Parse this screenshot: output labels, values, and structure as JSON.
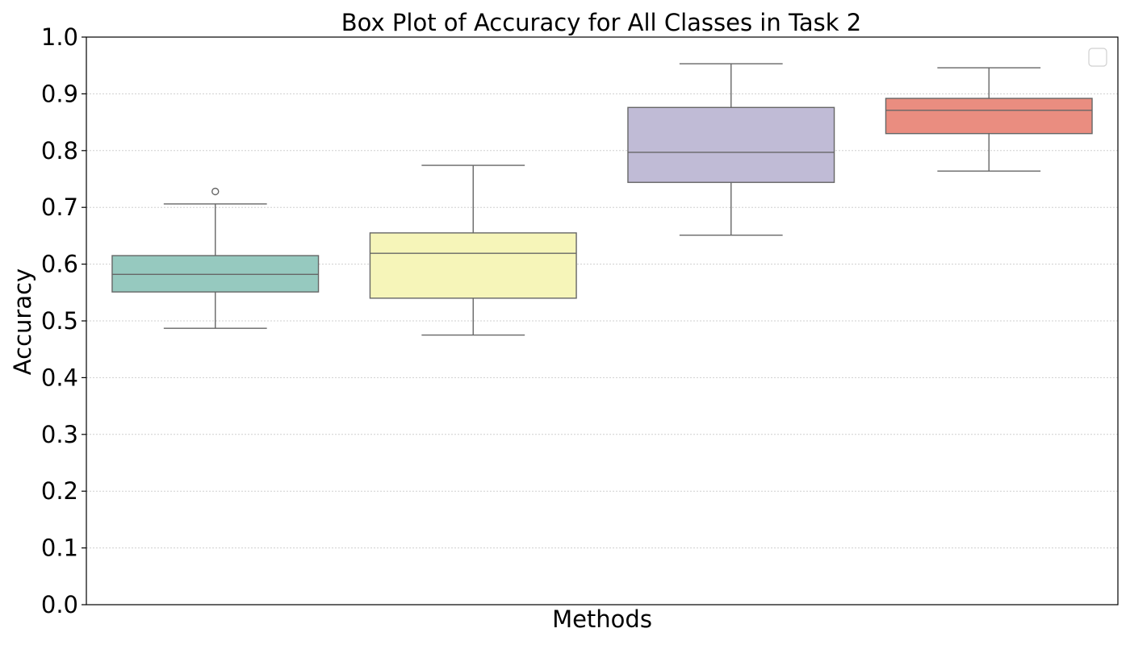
{
  "chart_data": {
    "type": "box",
    "title": "Box Plot of Accuracy for All Classes in Task 2",
    "xlabel": "Methods",
    "ylabel": "Accuracy",
    "ylim": [
      0.0,
      1.0
    ],
    "y_ticks": [
      "0.0",
      "0.1",
      "0.2",
      "0.3",
      "0.4",
      "0.5",
      "0.6",
      "0.7",
      "0.8",
      "0.9",
      "1.0"
    ],
    "grid": "horizontal dotted",
    "legend": "top-right, empty",
    "series": [
      {
        "color": "#96c9bf",
        "whisker_low": 0.487,
        "q1": 0.551,
        "median": 0.582,
        "q3": 0.615,
        "whisker_high": 0.706,
        "outliers": [
          0.728
        ]
      },
      {
        "color": "#f6f5b9",
        "whisker_low": 0.475,
        "q1": 0.54,
        "median": 0.619,
        "q3": 0.655,
        "whisker_high": 0.774,
        "outliers": []
      },
      {
        "color": "#c0bbd6",
        "whisker_low": 0.651,
        "q1": 0.744,
        "median": 0.797,
        "q3": 0.876,
        "whisker_high": 0.953,
        "outliers": []
      },
      {
        "color": "#ea8d80",
        "whisker_low": 0.764,
        "q1": 0.83,
        "median": 0.871,
        "q3": 0.892,
        "whisker_high": 0.946,
        "outliers": []
      }
    ]
  }
}
